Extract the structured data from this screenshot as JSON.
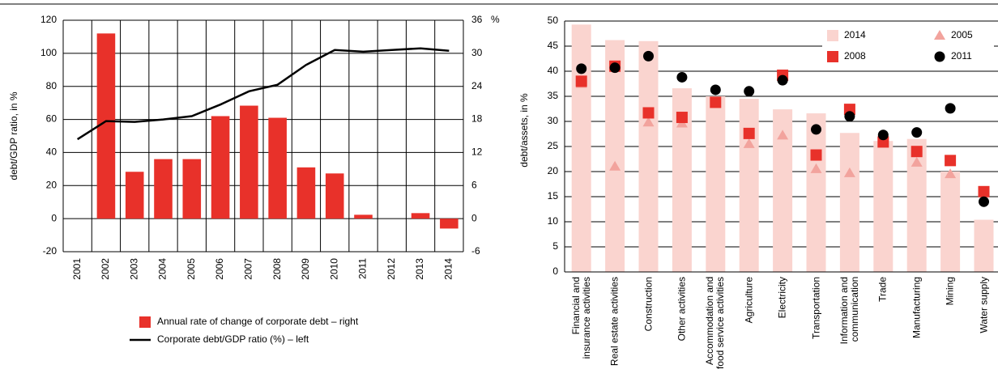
{
  "chart_data": [
    {
      "type": "combo",
      "y_label": "debt/GDP ratio, in %",
      "y2_label": "%",
      "categories": [
        "2001",
        "2002",
        "2003",
        "2004",
        "2005",
        "2006",
        "2007",
        "2008",
        "2009",
        "2010",
        "2011",
        "2012",
        "2013",
        "2014"
      ],
      "series": [
        {
          "name": "Annual rate of change of corporate debt – right",
          "kind": "bar",
          "axis": "y2",
          "color": "#e8312a",
          "values": [
            null,
            33.6,
            8.5,
            10.8,
            10.8,
            18.6,
            20.5,
            18.3,
            9.3,
            8.2,
            0.7,
            null,
            1.0,
            -1.8
          ]
        },
        {
          "name": "Corporate debt/GDP ratio (%) – left",
          "kind": "line",
          "axis": "y",
          "color": "#000000",
          "values": [
            48,
            59,
            58.5,
            60,
            62,
            69,
            77,
            81,
            93,
            102,
            101,
            102,
            103,
            101.5
          ]
        }
      ],
      "ylim": [
        -20,
        120
      ],
      "yticks": [
        -20,
        0,
        20,
        40,
        60,
        80,
        100,
        120
      ],
      "y2lim": [
        -6,
        36
      ],
      "y2ticks": [
        -6,
        0,
        6,
        12,
        18,
        24,
        30,
        36
      ],
      "grid": true
    },
    {
      "type": "bar",
      "y_label": "debt/assets, in %",
      "categories": [
        "Financial and\ninsurance activities",
        "Real estate activities",
        "Construction",
        "Other activities",
        "Accommodation and\nfood service activities",
        "Agriculture",
        "Electricity",
        "Transportation",
        "Information and\ncommunication",
        "Trade",
        "Manufacturing",
        "Mining",
        "Water supply"
      ],
      "series": [
        {
          "name": "2014",
          "marker": "bar",
          "color": "#fad4cf",
          "values": [
            49.3,
            46.2,
            46,
            36.6,
            35,
            34.5,
            32.4,
            31.6,
            27.7,
            26.1,
            26.5,
            20,
            10.4
          ]
        },
        {
          "name": "2005",
          "marker": "triangle",
          "color": "#f2a39d",
          "values": [
            37.5,
            21,
            29.8,
            29.6,
            33.6,
            25.5,
            27.2,
            20.5,
            19.7,
            25.8,
            21.8,
            19.5,
            null
          ]
        },
        {
          "name": "2008",
          "marker": "square",
          "color": "#e8312a",
          "values": [
            38,
            41,
            31.7,
            30.8,
            33.8,
            27.6,
            39.2,
            23.3,
            32.4,
            25.9,
            24,
            22.2,
            16
          ]
        },
        {
          "name": "2011",
          "marker": "circle",
          "color": "#000000",
          "values": [
            40.5,
            40.7,
            43,
            38.8,
            36.3,
            36,
            38.2,
            28.4,
            31,
            27.3,
            27.8,
            32.6,
            14
          ]
        }
      ],
      "ylim": [
        0,
        50
      ],
      "yticks": [
        0,
        5,
        10,
        15,
        20,
        25,
        30,
        35,
        40,
        45,
        50
      ],
      "grid": true,
      "legend": "top-right"
    }
  ]
}
